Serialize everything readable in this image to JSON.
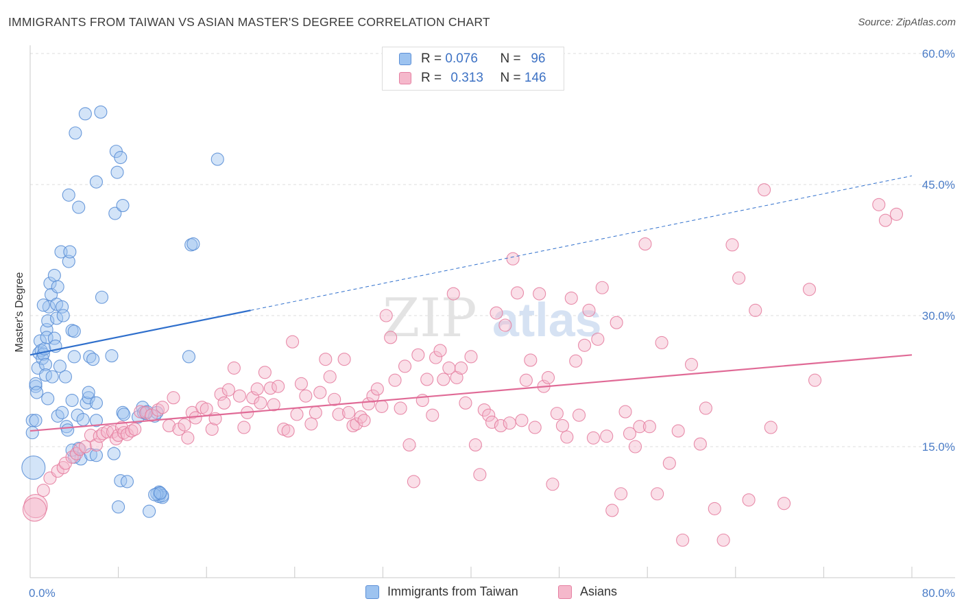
{
  "title": "IMMIGRANTS FROM TAIWAN VS ASIAN MASTER'S DEGREE CORRELATION CHART",
  "source": "Source: ZipAtlas.com",
  "watermark": {
    "zip": "ZIP",
    "atlas": "atlas"
  },
  "legend": {
    "r_label": "R =",
    "n_label": "N =",
    "rows": [
      {
        "r": "0.076",
        "n": "96",
        "color": "#9dc3f0"
      },
      {
        "r": "0.313",
        "n": "146",
        "color": "#f5b8cb"
      }
    ]
  },
  "chart_data": {
    "type": "scatter",
    "title": "IMMIGRANTS FROM TAIWAN VS ASIAN MASTER'S DEGREE CORRELATION CHART",
    "xlabel": "",
    "ylabel": "Master's Degree",
    "xlim": [
      0,
      80
    ],
    "ylim": [
      0,
      60
    ],
    "x_tick_labels": [
      "0.0%",
      "80.0%"
    ],
    "y_ticks": [
      15,
      30,
      45,
      60
    ],
    "y_tick_labels": [
      "15.0%",
      "30.0%",
      "45.0%",
      "60.0%"
    ],
    "grid": true,
    "series": [
      {
        "name": "Immigrants from Taiwan",
        "color": "#9dc3f0",
        "stroke": "#5b8fd6",
        "trend": {
          "x": [
            0,
            20
          ],
          "y": [
            25.5,
            30.6
          ],
          "extend_to": 80,
          "extend_y": 46.0,
          "color": "#2f6fcc"
        },
        "points": [
          [
            0.2,
            18.0
          ],
          [
            0.2,
            16.6
          ],
          [
            0.3,
            12.6
          ],
          [
            0.5,
            18.0
          ],
          [
            0.5,
            21.9
          ],
          [
            0.5,
            22.2
          ],
          [
            0.6,
            21.2
          ],
          [
            0.7,
            24.0
          ],
          [
            0.8,
            25.7
          ],
          [
            0.9,
            27.1
          ],
          [
            1.0,
            26.0
          ],
          [
            1.1,
            25.1
          ],
          [
            1.2,
            25.6
          ],
          [
            1.3,
            26.2
          ],
          [
            1.4,
            24.4
          ],
          [
            1.4,
            23.2
          ],
          [
            1.5,
            28.4
          ],
          [
            1.5,
            27.5
          ],
          [
            1.7,
            31.0
          ],
          [
            1.6,
            29.4
          ],
          [
            1.8,
            33.7
          ],
          [
            1.9,
            32.4
          ],
          [
            2.0,
            23.0
          ],
          [
            1.6,
            20.5
          ],
          [
            1.2,
            31.2
          ],
          [
            2.2,
            34.6
          ],
          [
            2.4,
            29.7
          ],
          [
            2.2,
            27.4
          ],
          [
            2.3,
            26.5
          ],
          [
            2.4,
            31.3
          ],
          [
            2.5,
            33.3
          ],
          [
            2.5,
            18.5
          ],
          [
            2.7,
            24.2
          ],
          [
            2.8,
            37.3
          ],
          [
            2.9,
            31.0
          ],
          [
            3.0,
            30.0
          ],
          [
            2.9,
            18.9
          ],
          [
            3.2,
            23.0
          ],
          [
            3.3,
            17.3
          ],
          [
            3.4,
            16.9
          ],
          [
            3.5,
            36.2
          ],
          [
            3.5,
            43.8
          ],
          [
            3.6,
            37.3
          ],
          [
            3.8,
            20.3
          ],
          [
            3.8,
            28.3
          ],
          [
            4.0,
            28.2
          ],
          [
            4.1,
            50.9
          ],
          [
            4.0,
            25.3
          ],
          [
            4.3,
            18.6
          ],
          [
            4.4,
            14.8
          ],
          [
            4.4,
            42.4
          ],
          [
            4.6,
            13.6
          ],
          [
            4.8,
            18.1
          ],
          [
            5.0,
            53.1
          ],
          [
            5.1,
            20.0
          ],
          [
            5.3,
            20.6
          ],
          [
            5.3,
            21.2
          ],
          [
            5.4,
            25.3
          ],
          [
            5.5,
            14.1
          ],
          [
            5.7,
            25.0
          ],
          [
            6.0,
            20.0
          ],
          [
            6.0,
            45.3
          ],
          [
            6.4,
            53.3
          ],
          [
            6.5,
            32.1
          ],
          [
            6.0,
            18.0
          ],
          [
            6.0,
            14.0
          ],
          [
            4.0,
            13.8
          ],
          [
            3.8,
            14.6
          ],
          [
            7.4,
            25.4
          ],
          [
            7.6,
            14.2
          ],
          [
            7.7,
            41.7
          ],
          [
            7.8,
            48.8
          ],
          [
            7.9,
            46.4
          ],
          [
            8.0,
            8.1
          ],
          [
            8.2,
            48.1
          ],
          [
            8.2,
            11.1
          ],
          [
            8.4,
            42.6
          ],
          [
            8.4,
            18.9
          ],
          [
            8.8,
            11.0
          ],
          [
            8.5,
            18.7
          ],
          [
            9.8,
            18.4
          ],
          [
            10.2,
            19.5
          ],
          [
            10.5,
            18.8
          ],
          [
            10.3,
            18.9
          ],
          [
            10.8,
            7.6
          ],
          [
            10.6,
            19.0
          ],
          [
            11.7,
            9.8
          ],
          [
            11.7,
            9.3
          ],
          [
            11.3,
            18.5
          ],
          [
            11.8,
            9.6
          ],
          [
            12.0,
            9.2
          ],
          [
            12.0,
            9.4
          ],
          [
            11.5,
            9.6
          ],
          [
            11.5,
            18.9
          ],
          [
            11.3,
            9.5
          ],
          [
            11.8,
            9.7
          ],
          [
            14.4,
            25.3
          ],
          [
            14.6,
            38.1
          ],
          [
            14.8,
            38.2
          ],
          [
            17.0,
            47.9
          ]
        ]
      },
      {
        "name": "Asians",
        "color": "#f5b8cb",
        "stroke": "#e57fa1",
        "trend": {
          "x": [
            0,
            80
          ],
          "y": [
            16.8,
            25.5
          ],
          "color": "#e06a96"
        },
        "points": [
          [
            0.5,
            8.2
          ],
          [
            0.4,
            7.8
          ],
          [
            1.2,
            10.0
          ],
          [
            1.8,
            11.4
          ],
          [
            2.5,
            12.2
          ],
          [
            3.0,
            12.6
          ],
          [
            3.2,
            13.1
          ],
          [
            3.8,
            13.8
          ],
          [
            4.2,
            14.2
          ],
          [
            4.5,
            14.7
          ],
          [
            5.0,
            15.0
          ],
          [
            5.5,
            16.3
          ],
          [
            6.0,
            15.2
          ],
          [
            6.3,
            16.2
          ],
          [
            6.6,
            16.5
          ],
          [
            7.0,
            16.7
          ],
          [
            7.5,
            16.7
          ],
          [
            7.8,
            15.9
          ],
          [
            8.0,
            16.3
          ],
          [
            8.3,
            17.2
          ],
          [
            8.5,
            16.6
          ],
          [
            8.8,
            16.4
          ],
          [
            9.2,
            16.8
          ],
          [
            9.5,
            17.0
          ],
          [
            10.0,
            19.0
          ],
          [
            10.5,
            18.9
          ],
          [
            11.0,
            18.6
          ],
          [
            11.6,
            19.2
          ],
          [
            12.0,
            19.5
          ],
          [
            12.6,
            17.4
          ],
          [
            13.0,
            20.6
          ],
          [
            13.5,
            17.0
          ],
          [
            14.0,
            17.5
          ],
          [
            14.3,
            16.0
          ],
          [
            14.7,
            18.9
          ],
          [
            15.0,
            18.3
          ],
          [
            15.6,
            19.5
          ],
          [
            16.0,
            19.3
          ],
          [
            16.5,
            17.0
          ],
          [
            16.8,
            18.2
          ],
          [
            17.3,
            21.0
          ],
          [
            17.6,
            20.0
          ],
          [
            18.0,
            21.5
          ],
          [
            18.5,
            24.0
          ],
          [
            19.0,
            20.8
          ],
          [
            19.4,
            17.2
          ],
          [
            19.7,
            18.9
          ],
          [
            20.2,
            20.6
          ],
          [
            20.6,
            21.6
          ],
          [
            20.9,
            20.0
          ],
          [
            21.3,
            23.5
          ],
          [
            21.8,
            21.7
          ],
          [
            22.1,
            19.8
          ],
          [
            22.5,
            21.9
          ],
          [
            23.0,
            17.0
          ],
          [
            23.4,
            16.8
          ],
          [
            23.8,
            27.0
          ],
          [
            24.2,
            18.7
          ],
          [
            24.6,
            22.2
          ],
          [
            25.0,
            20.8
          ],
          [
            25.5,
            17.6
          ],
          [
            25.9,
            18.9
          ],
          [
            26.3,
            21.2
          ],
          [
            26.8,
            25.0
          ],
          [
            27.2,
            23.0
          ],
          [
            27.6,
            20.4
          ],
          [
            28.0,
            18.7
          ],
          [
            28.5,
            25.0
          ],
          [
            28.9,
            18.9
          ],
          [
            29.3,
            17.4
          ],
          [
            29.6,
            17.6
          ],
          [
            30.0,
            18.4
          ],
          [
            30.3,
            18.0
          ],
          [
            30.7,
            19.9
          ],
          [
            31.1,
            20.8
          ],
          [
            31.5,
            21.6
          ],
          [
            31.9,
            19.6
          ],
          [
            32.3,
            30.0
          ],
          [
            32.7,
            27.5
          ],
          [
            33.1,
            22.6
          ],
          [
            33.6,
            19.4
          ],
          [
            34.0,
            24.2
          ],
          [
            34.4,
            15.2
          ],
          [
            34.8,
            11.0
          ],
          [
            35.2,
            25.5
          ],
          [
            35.6,
            20.3
          ],
          [
            36.0,
            22.7
          ],
          [
            36.5,
            18.6
          ],
          [
            36.8,
            25.2
          ],
          [
            37.2,
            26.0
          ],
          [
            37.5,
            22.7
          ],
          [
            38.0,
            24.0
          ],
          [
            38.4,
            32.5
          ],
          [
            38.7,
            22.9
          ],
          [
            39.1,
            24.0
          ],
          [
            39.5,
            20.0
          ],
          [
            40.0,
            25.3
          ],
          [
            40.4,
            15.2
          ],
          [
            40.8,
            11.8
          ],
          [
            41.2,
            19.2
          ],
          [
            41.6,
            18.6
          ],
          [
            41.9,
            17.8
          ],
          [
            42.3,
            30.3
          ],
          [
            42.7,
            17.4
          ],
          [
            43.1,
            28.9
          ],
          [
            43.5,
            17.7
          ],
          [
            43.8,
            36.5
          ],
          [
            44.2,
            32.6
          ],
          [
            44.6,
            18.0
          ],
          [
            45.0,
            22.6
          ],
          [
            45.4,
            24.9
          ],
          [
            45.8,
            17.2
          ],
          [
            46.2,
            32.5
          ],
          [
            46.6,
            21.9
          ],
          [
            47.0,
            22.9
          ],
          [
            47.4,
            10.7
          ],
          [
            47.8,
            18.8
          ],
          [
            48.3,
            17.4
          ],
          [
            48.7,
            16.1
          ],
          [
            49.1,
            32.0
          ],
          [
            49.5,
            24.8
          ],
          [
            49.8,
            18.6
          ],
          [
            50.3,
            26.6
          ],
          [
            50.7,
            30.6
          ],
          [
            51.1,
            16.0
          ],
          [
            51.5,
            27.3
          ],
          [
            51.9,
            33.2
          ],
          [
            52.3,
            16.2
          ],
          [
            52.8,
            7.7
          ],
          [
            53.2,
            29.2
          ],
          [
            53.6,
            9.6
          ],
          [
            54.0,
            19.0
          ],
          [
            54.4,
            16.5
          ],
          [
            54.9,
            15.0
          ],
          [
            55.3,
            17.3
          ],
          [
            55.8,
            38.2
          ],
          [
            56.2,
            17.3
          ],
          [
            56.9,
            9.6
          ],
          [
            57.3,
            26.9
          ],
          [
            58.0,
            13.1
          ],
          [
            58.8,
            16.8
          ],
          [
            59.2,
            4.3
          ],
          [
            60.0,
            24.4
          ],
          [
            60.8,
            15.3
          ],
          [
            61.3,
            19.4
          ],
          [
            62.1,
            7.9
          ],
          [
            62.9,
            4.3
          ],
          [
            63.7,
            38.1
          ],
          [
            64.3,
            34.3
          ],
          [
            65.2,
            8.9
          ],
          [
            65.8,
            30.6
          ],
          [
            66.6,
            44.4
          ],
          [
            67.2,
            17.2
          ],
          [
            68.4,
            8.5
          ],
          [
            70.7,
            33.0
          ],
          [
            71.2,
            22.6
          ],
          [
            77.0,
            42.7
          ],
          [
            77.6,
            40.9
          ],
          [
            78.6,
            41.6
          ]
        ]
      }
    ]
  },
  "bottom_legend": [
    {
      "label": "Immigrants from Taiwan",
      "color": "#9dc3f0"
    },
    {
      "label": "Asians",
      "color": "#f5b8cb"
    }
  ]
}
